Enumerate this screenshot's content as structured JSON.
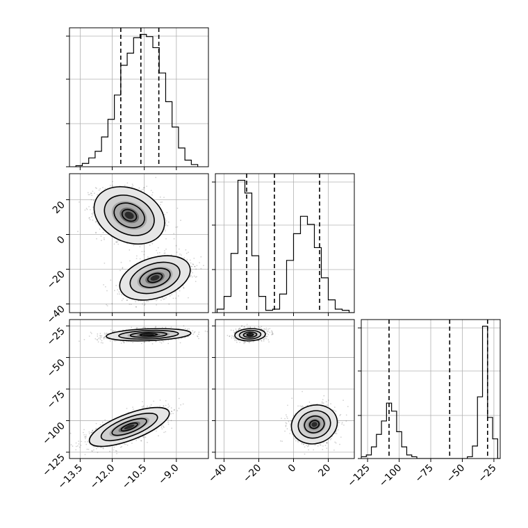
{
  "chart_data": {
    "type": "corner",
    "title": "",
    "grid": true,
    "quantile_line_style": "dashed",
    "parameters": [
      {
        "index": 0,
        "label": "",
        "range": [
          -14.0,
          -7.5
        ],
        "ticks": [
          -13.5,
          -12.0,
          -10.5,
          -9.0
        ],
        "tick_labels": [
          "−13.5",
          "−12.0",
          "−10.5",
          "−9.0"
        ]
      },
      {
        "index": 1,
        "label": "",
        "range": [
          -45,
          35
        ],
        "ticks": [
          -40,
          -20,
          0,
          20
        ],
        "tick_labels": [
          "−40",
          "−20",
          "0",
          "20"
        ]
      },
      {
        "index": 2,
        "label": "",
        "range": [
          -130,
          -20
        ],
        "ticks": [
          -125,
          -100,
          -75,
          -50,
          -25
        ],
        "tick_labels": [
          "−125",
          "−100",
          "−75",
          "−50",
          "−25"
        ]
      }
    ],
    "histograms": [
      {
        "param": 0,
        "quantiles": [
          -11.6,
          -10.66,
          -9.82
        ],
        "bin_edges": [
          -13.7,
          -13.4,
          -13.1,
          -12.8,
          -12.5,
          -12.2,
          -11.9,
          -11.6,
          -11.3,
          -11.0,
          -10.7,
          -10.4,
          -10.1,
          -9.8,
          -9.5,
          -9.2,
          -8.9,
          -8.6,
          -8.3,
          -8.0
        ],
        "counts": [
          1,
          3,
          8,
          14,
          27,
          43,
          65,
          92,
          103,
          117,
          120,
          118,
          108,
          85,
          59,
          36,
          17,
          6,
          2
        ]
      },
      {
        "param": 1,
        "quantiles": [
          -27,
          -11,
          15
        ],
        "bin_edges": [
          -44,
          -40,
          -36,
          -32,
          -28,
          -24,
          -20,
          -16,
          -12,
          -8,
          -4,
          0,
          4,
          8,
          12,
          16,
          20,
          24,
          28,
          32,
          36
        ],
        "counts": [
          3,
          14,
          51,
          114,
          103,
          49,
          14,
          2,
          3,
          16,
          45,
          68,
          83,
          76,
          56,
          30,
          11,
          3,
          2,
          0
        ]
      },
      {
        "param": 2,
        "quantiles": [
          -108,
          -60,
          -30
        ],
        "bin_edges": [
          -130,
          -126,
          -122,
          -118,
          -114,
          -110,
          -106,
          -102,
          -98,
          -94,
          -90,
          -86,
          -82,
          -78,
          -74,
          -70,
          -66,
          -62,
          -58,
          -54,
          -50,
          -46,
          -42,
          -38,
          -34,
          -30,
          -26,
          -22,
          -20
        ],
        "counts": [
          2,
          4,
          13,
          27,
          42,
          62,
          53,
          30,
          13,
          4,
          2,
          0,
          0,
          0,
          0,
          0,
          0,
          0,
          0,
          0,
          0,
          2,
          14,
          69,
          148,
          46,
          22,
          0
        ]
      }
    ],
    "pairs": [
      {
        "x_param": 0,
        "y_param": 1,
        "modes": [
          {
            "center": [
              -11.2,
              11
            ],
            "sd": [
              0.75,
              7.5
            ],
            "rho": -0.25,
            "weight": 0.5
          },
          {
            "center": [
              -10.0,
              -25
            ],
            "sd": [
              0.75,
              5.8
            ],
            "rho": 0.35,
            "weight": 0.5
          }
        ]
      },
      {
        "x_param": 0,
        "y_param": 2,
        "modes": [
          {
            "center": [
              -10.3,
              -32
            ],
            "sd": [
              0.9,
              2.2
            ],
            "rho": 0.25,
            "weight": 0.5
          },
          {
            "center": [
              -11.2,
              -105
            ],
            "sd": [
              0.85,
              7.0
            ],
            "rho": 0.7,
            "weight": 0.5
          }
        ]
      },
      {
        "x_param": 1,
        "y_param": 2,
        "modes": [
          {
            "center": [
              -25,
              -32
            ],
            "sd": [
              4.0,
              2.2
            ],
            "rho": 0.1,
            "weight": 0.5
          },
          {
            "center": [
              12,
              -103
            ],
            "sd": [
              6.0,
              7.0
            ],
            "rho": 0.1,
            "weight": 0.5
          }
        ]
      }
    ]
  }
}
